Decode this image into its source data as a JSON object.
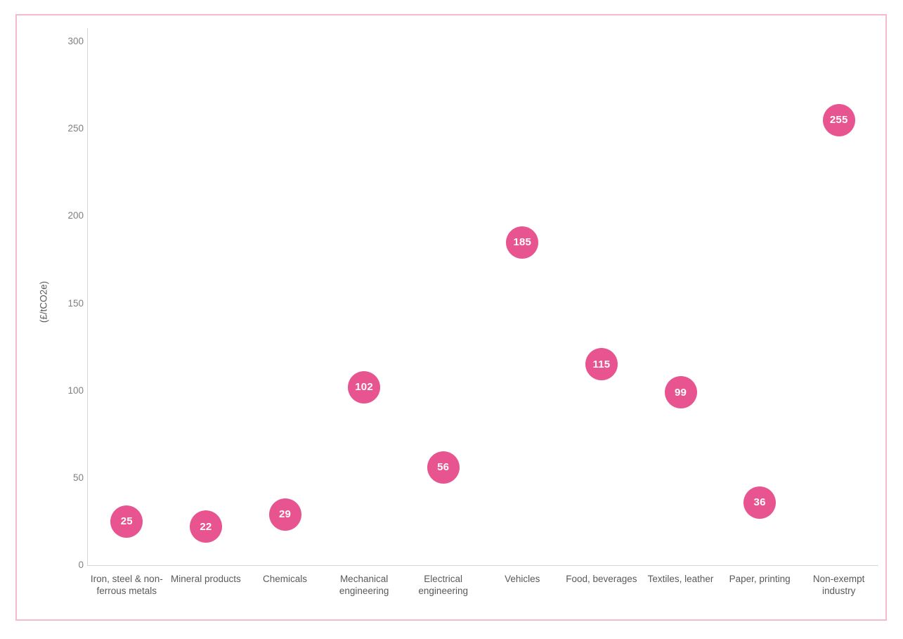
{
  "frame": {
    "border_color": "#f3bad2"
  },
  "chart_data": {
    "type": "scatter",
    "title": "",
    "categories": [
      "Iron, steel & non-ferrous metals",
      "Mineral products",
      "Chemicals",
      "Mechanical engineering",
      "Electrical engineering",
      "Vehicles",
      "Food, beverages",
      "Textiles, leather",
      "Paper, printing",
      "Non-exempt industry"
    ],
    "values": [
      25,
      22,
      29,
      102,
      56,
      185,
      115,
      99,
      36,
      255
    ],
    "xlabel": "",
    "ylabel": "(£/tCO2e)",
    "ylim": [
      0,
      300
    ],
    "yticks": [
      0,
      50,
      100,
      150,
      200,
      250,
      300
    ],
    "grid": "off",
    "legend": "none",
    "marker_color": "#e8548f",
    "marker_label_color": "#ffffff",
    "axis_line_color": "#d6d6d6",
    "tick_label_color": "#808080",
    "category_label_color": "#595959"
  }
}
